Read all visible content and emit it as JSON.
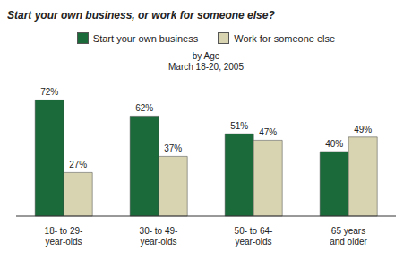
{
  "chart_data": {
    "type": "bar",
    "title": "Start your own business, or work for someone else?",
    "subtitle": [
      "by Age",
      "March 18-20, 2005"
    ],
    "categories": [
      "18- to 29-year-olds",
      "30- to 49-year-olds",
      "50- to 64-year-olds",
      "65 years and older"
    ],
    "series": [
      {
        "name": "Start your own business",
        "color": "#1b6b3a",
        "values": [
          72,
          62,
          51,
          40
        ],
        "value_labels": [
          "72%",
          "62%",
          "51%",
          "40%"
        ]
      },
      {
        "name": "Work for someone else",
        "color": "#d8d4b2",
        "values": [
          27,
          37,
          47,
          49
        ],
        "value_labels": [
          "27%",
          "37%",
          "47%",
          "49%"
        ]
      }
    ],
    "data_labels": true,
    "tick_labels": "x",
    "legend": "top"
  }
}
